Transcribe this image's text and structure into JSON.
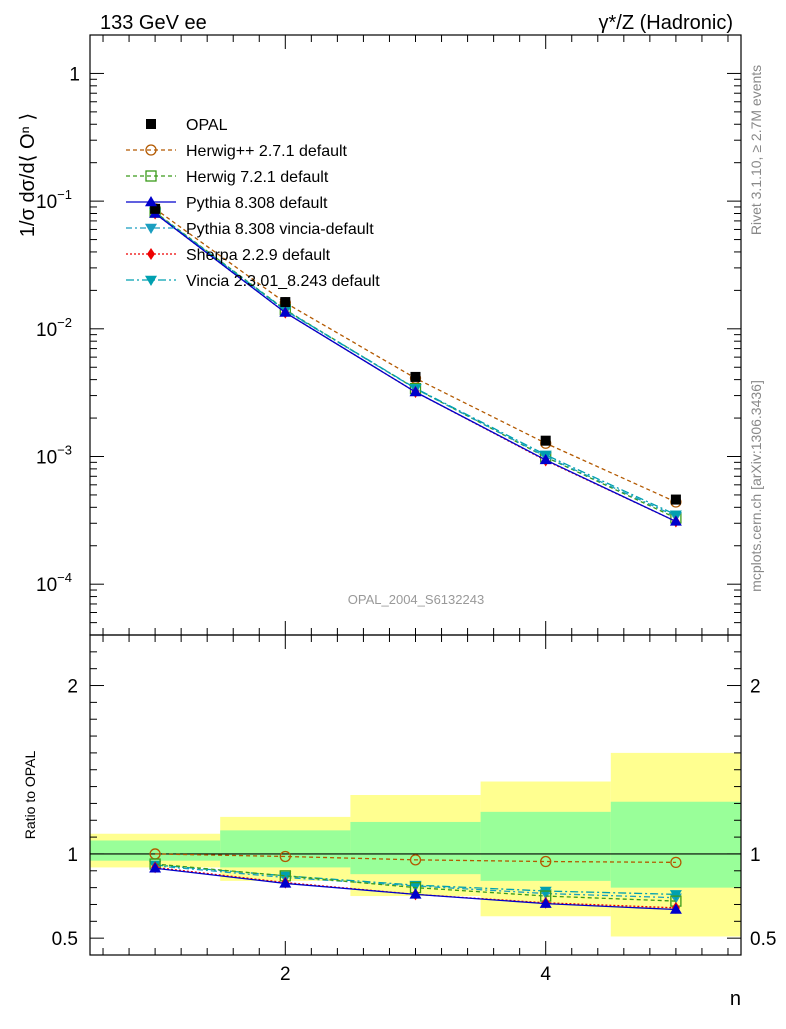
{
  "header": {
    "left": "133 GeV ee",
    "right": "γ*/Z (Hadronic)"
  },
  "side_labels": {
    "rivet": "Rivet 3.1.10, ≥ 2.7M events",
    "mcplots": "mcplots.cern.ch [arXiv:1306.3436]"
  },
  "watermark": "OPAL_2004_S6132243",
  "chart_data": [
    {
      "type": "line",
      "panel": "main",
      "ylabel": "1/σ dσ/d⟨ Oⁿ ⟩",
      "yscale": "log",
      "ylim": [
        4e-05,
        2
      ],
      "xlim": [
        0.5,
        5.5
      ],
      "yticks": [
        {
          "value": 1,
          "base": "1",
          "exp": ""
        },
        {
          "value": 0.1,
          "base": "10",
          "exp": "−1"
        },
        {
          "value": 0.01,
          "base": "10",
          "exp": "−2"
        },
        {
          "value": 0.001,
          "base": "10",
          "exp": "−3"
        },
        {
          "value": 0.0001,
          "base": "10",
          "exp": "−4"
        }
      ],
      "x": [
        1,
        2,
        3,
        4,
        5
      ],
      "series": [
        {
          "name": "OPAL",
          "color": "#000000",
          "marker": "square-filled",
          "dash": "none",
          "values": [
            0.087,
            0.0162,
            0.0042,
            0.00133,
            0.00046
          ]
        },
        {
          "name": "Herwig++ 2.7.1 default",
          "color": "#b35900",
          "marker": "circle-open",
          "dash": "4,3",
          "values": [
            0.087,
            0.016,
            0.0041,
            0.00127,
            0.00044
          ]
        },
        {
          "name": "Herwig 7.2.1 default",
          "color": "#3a9a1a",
          "marker": "square-open",
          "dash": "4,3",
          "values": [
            0.082,
            0.0141,
            0.0034,
            0.00099,
            0.00033
          ]
        },
        {
          "name": "Pythia 8.308 default",
          "color": "#0000cc",
          "marker": "triangle-up",
          "dash": "none",
          "values": [
            0.08,
            0.0134,
            0.0032,
            0.00094,
            0.00031
          ]
        },
        {
          "name": "Pythia 8.308 vincia-default",
          "color": "#1a9ec0",
          "marker": "triangle-down",
          "dash": "6,3,2,3",
          "values": [
            0.081,
            0.0139,
            0.0034,
            0.001,
            0.00034
          ]
        },
        {
          "name": "Sherpa 2.2.9 default",
          "color": "#ee0000",
          "marker": "diamond",
          "dash": "2,2",
          "values": [
            0.08,
            0.0134,
            0.0032,
            0.00093,
            0.00031
          ]
        },
        {
          "name": "Vincia 2.3.01_8.243 default",
          "color": "#00a0b0",
          "marker": "triangle-down",
          "dash": "8,3,2,3",
          "values": [
            0.081,
            0.014,
            0.00342,
            0.00103,
            0.00035
          ]
        }
      ]
    },
    {
      "type": "line",
      "panel": "ratio",
      "ylabel": "Ratio to OPAL",
      "xlabel": "n",
      "ylim": [
        0.4,
        2.3
      ],
      "xlim": [
        0.5,
        5.5
      ],
      "yticks": [
        0.5,
        1,
        2
      ],
      "xticks": [
        2,
        4
      ],
      "bins": [
        {
          "lo": 0.5,
          "hi": 1.5,
          "stat": [
            0.96,
            1.08
          ],
          "tot": [
            0.92,
            1.12
          ]
        },
        {
          "lo": 1.5,
          "hi": 2.5,
          "stat": [
            0.92,
            1.14
          ],
          "tot": [
            0.84,
            1.22
          ]
        },
        {
          "lo": 2.5,
          "hi": 3.5,
          "stat": [
            0.88,
            1.19
          ],
          "tot": [
            0.75,
            1.35
          ]
        },
        {
          "lo": 3.5,
          "hi": 4.5,
          "stat": [
            0.84,
            1.25
          ],
          "tot": [
            0.63,
            1.43
          ]
        },
        {
          "lo": 4.5,
          "hi": 5.5,
          "stat": [
            0.8,
            1.31
          ],
          "tot": [
            0.51,
            1.6
          ]
        }
      ],
      "series": [
        {
          "name": "Herwig++ 2.7.1 default",
          "values": [
            1.0,
            0.985,
            0.965,
            0.955,
            0.95
          ]
        },
        {
          "name": "Herwig 7.2.1 default",
          "values": [
            0.94,
            0.87,
            0.8,
            0.75,
            0.72
          ]
        },
        {
          "name": "Pythia 8.308 default",
          "values": [
            0.915,
            0.825,
            0.76,
            0.705,
            0.67
          ]
        },
        {
          "name": "Pythia 8.308 vincia-default",
          "values": [
            0.93,
            0.86,
            0.81,
            0.765,
            0.74
          ]
        },
        {
          "name": "Sherpa 2.2.9 default",
          "values": [
            0.92,
            0.83,
            0.76,
            0.71,
            0.68
          ]
        },
        {
          "name": "Vincia 2.3.01_8.243 default",
          "values": [
            0.935,
            0.87,
            0.815,
            0.78,
            0.76
          ]
        }
      ]
    }
  ]
}
